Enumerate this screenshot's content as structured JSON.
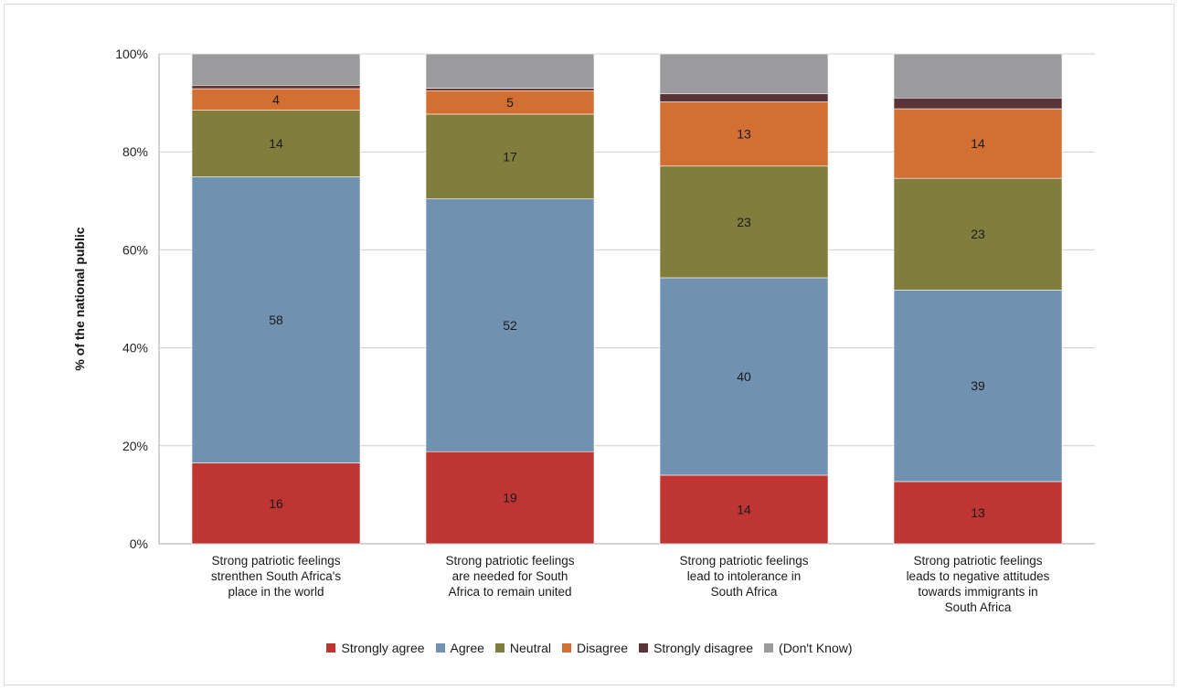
{
  "chart_data": {
    "type": "bar",
    "stacked": true,
    "percent_stacked": true,
    "ylabel": "% of the national public",
    "y_ticks": [
      "0%",
      "20%",
      "40%",
      "60%",
      "80%",
      "100%"
    ],
    "ylim": [
      0,
      100
    ],
    "grid": true,
    "legend_position": "bottom",
    "categories": [
      [
        "Strong patriotic feelings",
        "strenthen South Africa's",
        "place in the world"
      ],
      [
        "Strong patriotic feelings",
        "are needed for South",
        "Africa to remain united"
      ],
      [
        "Strong patriotic feelings",
        "lead to intolerance in",
        "South Africa"
      ],
      [
        "Strong patriotic feelings",
        "leads to negative attitudes",
        "towards immigrants in",
        "South Africa"
      ]
    ],
    "series": [
      {
        "name": "Strongly agree",
        "color": "#be3532",
        "values": [
          16.5,
          18.8,
          14.0,
          12.7
        ],
        "labels": [
          "16",
          "19",
          "14",
          "13"
        ]
      },
      {
        "name": "Agree",
        "color": "#7191b0",
        "values": [
          58.4,
          51.6,
          40.3,
          39.1
        ],
        "labels": [
          "58",
          "52",
          "40",
          "39"
        ]
      },
      {
        "name": "Neutral",
        "color": "#817d3c",
        "values": [
          13.6,
          17.3,
          22.8,
          22.8
        ],
        "labels": [
          "14",
          "17",
          "23",
          "23"
        ]
      },
      {
        "name": "Disagree",
        "color": "#d36f32",
        "values": [
          4.4,
          4.8,
          13.1,
          14.2
        ],
        "labels": [
          "4",
          "5",
          "13",
          "14"
        ]
      },
      {
        "name": "Strongly disagree",
        "color": "#5b3437",
        "values": [
          0.7,
          0.5,
          1.7,
          2.2
        ],
        "labels": [
          "",
          "",
          "",
          ""
        ]
      },
      {
        "name": "(Don't Know)",
        "color": "#9b9b9e",
        "values": [
          6.4,
          7.0,
          8.1,
          9.0
        ],
        "labels": [
          "",
          "",
          "",
          ""
        ]
      }
    ]
  }
}
